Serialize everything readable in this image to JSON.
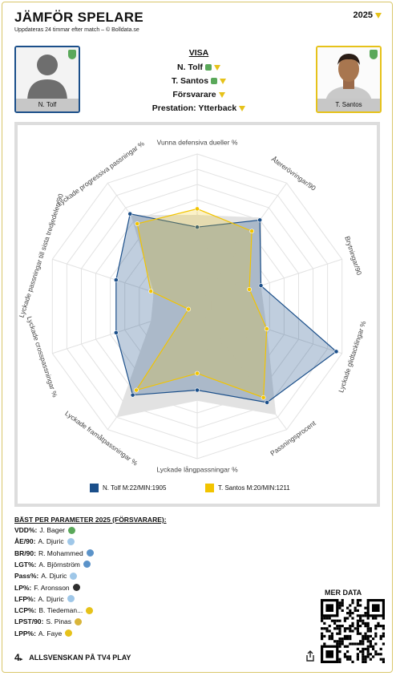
{
  "header": {
    "title": "JÄMFÖR SPELARE",
    "subtitle": "Uppdateras 24 timmar efter match – © Bolldata.se",
    "year": "2025"
  },
  "player_left": {
    "name": "N. Tolf"
  },
  "player_right": {
    "name": "T. Santos"
  },
  "visa": {
    "heading": "VISA",
    "player1": "N. Tolf",
    "player2": "T. Santos",
    "position": "Försvarare",
    "performance": "Prestation: Ytterback"
  },
  "chart_data": {
    "type": "radar",
    "axes": [
      "Vunna defensiva dueller %",
      "Återerövringar/90",
      "Brytningar/90",
      "Lyckade glidtacklingar %",
      "Passningsprocent",
      "Lyckade långpassningar %",
      "Lyckade framåtpassningar %",
      "Lyckade crosspassningar %",
      "Lyckade passningar till sista tredjedelen/90",
      "Lyckade progressiva passningar %"
    ],
    "series": [
      {
        "name": "N. Tolf M:22/MIN:1905",
        "color": "#1b4f8a",
        "values": [
          0.52,
          0.7,
          0.44,
          0.96,
          0.78,
          0.55,
          0.72,
          0.56,
          0.56,
          0.75
        ]
      },
      {
        "name": "T. Santos M:20/MIN:1211",
        "color": "#f2c400",
        "values": [
          0.64,
          0.61,
          0.36,
          0.48,
          0.74,
          0.44,
          0.68,
          0.06,
          0.32,
          0.67
        ]
      }
    ],
    "range": [
      0,
      1
    ],
    "grid": "10 rings"
  },
  "best": {
    "heading": "BÄST PER PARAMETER 2025 (FÖRSVARARE):",
    "rows": [
      {
        "key": "VDD%:",
        "value": "J. Bager",
        "badge": "#5aa85a"
      },
      {
        "key": "ÅE/90:",
        "value": "A. Djuric",
        "badge": "#9fc7e8"
      },
      {
        "key": "BR/90:",
        "value": "R. Mohammed",
        "badge": "#5b93c9"
      },
      {
        "key": "LGT%:",
        "value": "A. Björnström",
        "badge": "#5b93c9"
      },
      {
        "key": "Pass%:",
        "value": "A. Djuric",
        "badge": "#9fc7e8"
      },
      {
        "key": "LP%:",
        "value": "F. Aronsson",
        "badge": "#2e2e2e"
      },
      {
        "key": "LFP%:",
        "value": "A. Djuric",
        "badge": "#9fc7e8"
      },
      {
        "key": "LCP%:",
        "value": "B. Tiedeman...",
        "badge": "#e6c21a"
      },
      {
        "key": "LPST/90:",
        "value": "S. Pinas",
        "badge": "#d9b53a"
      },
      {
        "key": "LPP%:",
        "value": "A. Faye",
        "badge": "#e6c21a"
      }
    ]
  },
  "qr": {
    "label": "MER DATA"
  },
  "footer": {
    "label": "ALLSVENSKAN PÅ TV4 PLAY"
  }
}
